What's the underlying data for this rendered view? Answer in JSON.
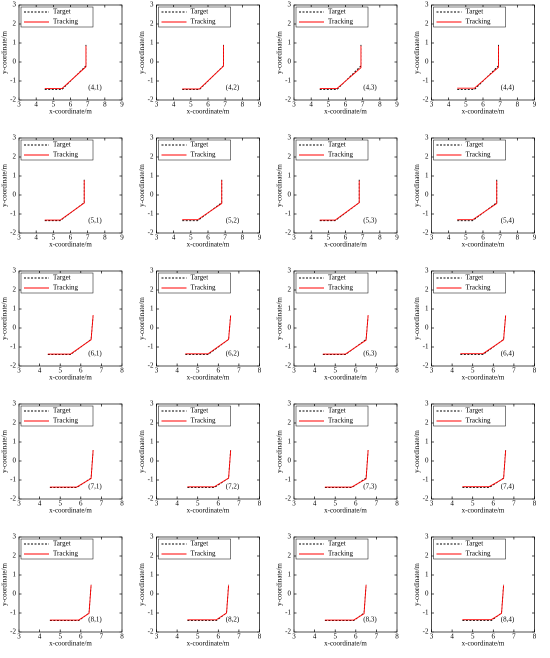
{
  "chart_data": [
    {
      "type": "line",
      "xlabel": "x-coordinate/m",
      "ylabel": "y-coordinate/m",
      "annotation": "(4,1)",
      "xlim": [
        3,
        9
      ],
      "ylim": [
        -2,
        3
      ],
      "xticks": [
        3,
        4,
        5,
        6,
        7,
        8,
        9
      ],
      "yticks": [
        -2,
        -1,
        0,
        1,
        2,
        3
      ],
      "x": [
        4.5,
        5.5,
        6.9,
        6.9
      ],
      "series": [
        {
          "name": "Target",
          "color": "#000000",
          "values": [
            -1.45,
            -1.45,
            -0.2,
            0.9
          ]
        },
        {
          "name": "Tracking",
          "color": "#ff0000",
          "values": [
            -1.4,
            -1.4,
            -0.25,
            0.85
          ]
        }
      ]
    },
    {
      "type": "line",
      "xlabel": "x-coordinate/m",
      "ylabel": "y-coordinate/m",
      "annotation": "(4,2)",
      "xlim": [
        3,
        9
      ],
      "ylim": [
        -2,
        3
      ],
      "xticks": [
        3,
        4,
        5,
        6,
        7,
        8,
        9
      ],
      "yticks": [
        -2,
        -1,
        0,
        1,
        2,
        3
      ],
      "x": [
        4.5,
        5.5,
        6.9,
        6.9
      ],
      "series": [
        {
          "name": "Target",
          "color": "#000000",
          "values": [
            -1.45,
            -1.45,
            -0.2,
            0.9
          ]
        },
        {
          "name": "Tracking",
          "color": "#ff0000",
          "values": [
            -1.42,
            -1.42,
            -0.22,
            0.88
          ]
        }
      ]
    },
    {
      "type": "line",
      "xlabel": "x-coordinate/m",
      "ylabel": "y-coordinate/m",
      "annotation": "(4,3)",
      "xlim": [
        3,
        9
      ],
      "ylim": [
        -2,
        3
      ],
      "xticks": [
        3,
        4,
        5,
        6,
        7,
        8,
        9
      ],
      "yticks": [
        -2,
        -1,
        0,
        1,
        2,
        3
      ],
      "x": [
        4.5,
        5.5,
        6.9,
        6.9
      ],
      "series": [
        {
          "name": "Target",
          "color": "#000000",
          "values": [
            -1.45,
            -1.45,
            -0.2,
            0.9
          ]
        },
        {
          "name": "Tracking",
          "color": "#ff0000",
          "values": [
            -1.4,
            -1.4,
            -0.3,
            0.85
          ]
        }
      ]
    },
    {
      "type": "line",
      "xlabel": "x-coordinate/m",
      "ylabel": "y-coordinate/m",
      "annotation": "(4,4)",
      "xlim": [
        3,
        9
      ],
      "ylim": [
        -2,
        3
      ],
      "xticks": [
        3,
        4,
        5,
        6,
        7,
        8,
        9
      ],
      "yticks": [
        -2,
        -1,
        0,
        1,
        2,
        3
      ],
      "x": [
        4.5,
        5.5,
        6.9,
        6.9
      ],
      "series": [
        {
          "name": "Target",
          "color": "#000000",
          "values": [
            -1.45,
            -1.45,
            -0.2,
            0.9
          ]
        },
        {
          "name": "Tracking",
          "color": "#ff0000",
          "values": [
            -1.38,
            -1.38,
            -0.28,
            0.85
          ]
        }
      ]
    },
    {
      "type": "line",
      "xlabel": "x-coordinate/m",
      "ylabel": "y-coordinate/m",
      "annotation": "(5,1)",
      "xlim": [
        3,
        9
      ],
      "ylim": [
        -2,
        3
      ],
      "xticks": [
        3,
        4,
        5,
        6,
        7,
        8,
        9
      ],
      "yticks": [
        -2,
        -1,
        0,
        1,
        2,
        3
      ],
      "x": [
        4.5,
        5.4,
        6.8,
        6.8
      ],
      "series": [
        {
          "name": "Target",
          "color": "#000000",
          "values": [
            -1.35,
            -1.35,
            -0.4,
            0.8
          ]
        },
        {
          "name": "Tracking",
          "color": "#ff0000",
          "values": [
            -1.32,
            -1.32,
            -0.42,
            0.78
          ]
        }
      ]
    },
    {
      "type": "line",
      "xlabel": "x-coordinate/m",
      "ylabel": "y-coordinate/m",
      "annotation": "(5,2)",
      "xlim": [
        3,
        9
      ],
      "ylim": [
        -2,
        3
      ],
      "xticks": [
        3,
        4,
        5,
        6,
        7,
        8,
        9
      ],
      "yticks": [
        -2,
        -1,
        0,
        1,
        2,
        3
      ],
      "x": [
        4.5,
        5.4,
        6.8,
        6.8
      ],
      "series": [
        {
          "name": "Target",
          "color": "#000000",
          "values": [
            -1.35,
            -1.35,
            -0.4,
            0.8
          ]
        },
        {
          "name": "Tracking",
          "color": "#ff0000",
          "values": [
            -1.3,
            -1.3,
            -0.45,
            0.78
          ]
        }
      ]
    },
    {
      "type": "line",
      "xlabel": "x-coordinate/m",
      "ylabel": "y-coordinate/m",
      "annotation": "(5,3)",
      "xlim": [
        3,
        9
      ],
      "ylim": [
        -2,
        3
      ],
      "xticks": [
        3,
        4,
        5,
        6,
        7,
        8,
        9
      ],
      "yticks": [
        -2,
        -1,
        0,
        1,
        2,
        3
      ],
      "x": [
        4.5,
        5.4,
        6.8,
        6.8
      ],
      "series": [
        {
          "name": "Target",
          "color": "#000000",
          "values": [
            -1.35,
            -1.35,
            -0.4,
            0.8
          ]
        },
        {
          "name": "Tracking",
          "color": "#ff0000",
          "values": [
            -1.32,
            -1.32,
            -0.4,
            0.75
          ]
        }
      ]
    },
    {
      "type": "line",
      "xlabel": "x-coordinate/m",
      "ylabel": "y-coordinate/m",
      "annotation": "(5,4)",
      "xlim": [
        3,
        9
      ],
      "ylim": [
        -2,
        3
      ],
      "xticks": [
        3,
        4,
        5,
        6,
        7,
        8,
        9
      ],
      "yticks": [
        -2,
        -1,
        0,
        1,
        2,
        3
      ],
      "x": [
        4.5,
        5.4,
        6.8,
        6.8
      ],
      "series": [
        {
          "name": "Target",
          "color": "#000000",
          "values": [
            -1.35,
            -1.35,
            -0.4,
            0.8
          ]
        },
        {
          "name": "Tracking",
          "color": "#ff0000",
          "values": [
            -1.3,
            -1.3,
            -0.45,
            0.75
          ]
        }
      ]
    },
    {
      "type": "line",
      "xlabel": "x-coordinate/m",
      "ylabel": "y-coordinate/m",
      "annotation": "(6,1)",
      "xlim": [
        3,
        8
      ],
      "ylim": [
        -2,
        3
      ],
      "xticks": [
        3,
        4,
        5,
        6,
        7,
        8
      ],
      "yticks": [
        -2,
        -1,
        0,
        1,
        2,
        3
      ],
      "x": [
        4.4,
        5.5,
        6.5,
        6.6
      ],
      "series": [
        {
          "name": "Target",
          "color": "#000000",
          "values": [
            -1.4,
            -1.4,
            -0.6,
            0.7
          ]
        },
        {
          "name": "Tracking",
          "color": "#ff0000",
          "values": [
            -1.37,
            -1.37,
            -0.62,
            0.68
          ]
        }
      ]
    },
    {
      "type": "line",
      "xlabel": "x-coordinate/m",
      "ylabel": "y-coordinate/m",
      "annotation": "(6,2)",
      "xlim": [
        3,
        8
      ],
      "ylim": [
        -2,
        3
      ],
      "xticks": [
        3,
        4,
        5,
        6,
        7,
        8
      ],
      "yticks": [
        -2,
        -1,
        0,
        1,
        2,
        3
      ],
      "x": [
        4.4,
        5.5,
        6.5,
        6.6
      ],
      "series": [
        {
          "name": "Target",
          "color": "#000000",
          "values": [
            -1.4,
            -1.4,
            -0.6,
            0.7
          ]
        },
        {
          "name": "Tracking",
          "color": "#ff0000",
          "values": [
            -1.36,
            -1.36,
            -0.6,
            0.66
          ]
        }
      ]
    },
    {
      "type": "line",
      "xlabel": "x-coordinate/m",
      "ylabel": "y-coordinate/m",
      "annotation": "(6,3)",
      "xlim": [
        3,
        8
      ],
      "ylim": [
        -2,
        3
      ],
      "xticks": [
        3,
        4,
        5,
        6,
        7,
        8
      ],
      "yticks": [
        -2,
        -1,
        0,
        1,
        2,
        3
      ],
      "x": [
        4.4,
        5.5,
        6.5,
        6.6
      ],
      "series": [
        {
          "name": "Target",
          "color": "#000000",
          "values": [
            -1.4,
            -1.4,
            -0.6,
            0.7
          ]
        },
        {
          "name": "Tracking",
          "color": "#ff0000",
          "values": [
            -1.37,
            -1.37,
            -0.64,
            0.68
          ]
        }
      ]
    },
    {
      "type": "line",
      "xlabel": "x-coordinate/m",
      "ylabel": "y-coordinate/m",
      "annotation": "(6,4)",
      "xlim": [
        3,
        8
      ],
      "ylim": [
        -2,
        3
      ],
      "xticks": [
        3,
        4,
        5,
        6,
        7,
        8
      ],
      "yticks": [
        -2,
        -1,
        0,
        1,
        2,
        3
      ],
      "x": [
        4.4,
        5.5,
        6.5,
        6.6
      ],
      "series": [
        {
          "name": "Target",
          "color": "#000000",
          "values": [
            -1.4,
            -1.4,
            -0.6,
            0.7
          ]
        },
        {
          "name": "Tracking",
          "color": "#ff0000",
          "values": [
            -1.35,
            -1.35,
            -0.62,
            0.66
          ]
        }
      ]
    },
    {
      "type": "line",
      "xlabel": "x-coordinate/m",
      "ylabel": "y-coordinate/m",
      "annotation": "(7,1)",
      "xlim": [
        3,
        8
      ],
      "ylim": [
        -2,
        3
      ],
      "xticks": [
        3,
        4,
        5,
        6,
        7,
        8
      ],
      "yticks": [
        -2,
        -1,
        0,
        1,
        2,
        3
      ],
      "x": [
        4.5,
        5.8,
        6.5,
        6.6
      ],
      "series": [
        {
          "name": "Target",
          "color": "#000000",
          "values": [
            -1.4,
            -1.4,
            -0.9,
            0.6
          ]
        },
        {
          "name": "Tracking",
          "color": "#ff0000",
          "values": [
            -1.37,
            -1.37,
            -0.92,
            0.58
          ]
        }
      ]
    },
    {
      "type": "line",
      "xlabel": "x-coordinate/m",
      "ylabel": "y-coordinate/m",
      "annotation": "(7,2)",
      "xlim": [
        3,
        8
      ],
      "ylim": [
        -2,
        3
      ],
      "xticks": [
        3,
        4,
        5,
        6,
        7,
        8
      ],
      "yticks": [
        -2,
        -1,
        0,
        1,
        2,
        3
      ],
      "x": [
        4.5,
        5.8,
        6.5,
        6.6
      ],
      "series": [
        {
          "name": "Target",
          "color": "#000000",
          "values": [
            -1.4,
            -1.4,
            -0.9,
            0.6
          ]
        },
        {
          "name": "Tracking",
          "color": "#ff0000",
          "values": [
            -1.36,
            -1.36,
            -0.9,
            0.56
          ]
        }
      ]
    },
    {
      "type": "line",
      "xlabel": "x-coordinate/m",
      "ylabel": "y-coordinate/m",
      "annotation": "(7,3)",
      "xlim": [
        3,
        8
      ],
      "ylim": [
        -2,
        3
      ],
      "xticks": [
        3,
        4,
        5,
        6,
        7,
        8
      ],
      "yticks": [
        -2,
        -1,
        0,
        1,
        2,
        3
      ],
      "x": [
        4.5,
        5.8,
        6.5,
        6.6
      ],
      "series": [
        {
          "name": "Target",
          "color": "#000000",
          "values": [
            -1.4,
            -1.4,
            -0.9,
            0.6
          ]
        },
        {
          "name": "Tracking",
          "color": "#ff0000",
          "values": [
            -1.37,
            -1.37,
            -0.94,
            0.58
          ]
        }
      ]
    },
    {
      "type": "line",
      "xlabel": "x-coordinate/m",
      "ylabel": "y-coordinate/m",
      "annotation": "(7,4)",
      "xlim": [
        3,
        8
      ],
      "ylim": [
        -2,
        3
      ],
      "xticks": [
        3,
        4,
        5,
        6,
        7,
        8
      ],
      "yticks": [
        -2,
        -1,
        0,
        1,
        2,
        3
      ],
      "x": [
        4.5,
        5.8,
        6.5,
        6.6
      ],
      "series": [
        {
          "name": "Target",
          "color": "#000000",
          "values": [
            -1.4,
            -1.4,
            -0.9,
            0.6
          ]
        },
        {
          "name": "Tracking",
          "color": "#ff0000",
          "values": [
            -1.35,
            -1.35,
            -0.92,
            0.56
          ]
        }
      ]
    },
    {
      "type": "line",
      "xlabel": "x-coordinate/m",
      "ylabel": "y-coordinate/m",
      "annotation": "(8,1)",
      "xlim": [
        3,
        8
      ],
      "ylim": [
        -2,
        3
      ],
      "xticks": [
        3,
        4,
        5,
        6,
        7,
        8
      ],
      "yticks": [
        -2,
        -1,
        0,
        1,
        2,
        3
      ],
      "x": [
        4.5,
        5.9,
        6.4,
        6.5
      ],
      "series": [
        {
          "name": "Target",
          "color": "#000000",
          "values": [
            -1.4,
            -1.4,
            -1.0,
            0.5
          ]
        },
        {
          "name": "Tracking",
          "color": "#ff0000",
          "values": [
            -1.37,
            -1.37,
            -1.02,
            0.48
          ]
        }
      ]
    },
    {
      "type": "line",
      "xlabel": "x-coordinate/m",
      "ylabel": "y-coordinate/m",
      "annotation": "(8,2)",
      "xlim": [
        3,
        8
      ],
      "ylim": [
        -2,
        3
      ],
      "xticks": [
        3,
        4,
        5,
        6,
        7,
        8
      ],
      "yticks": [
        -2,
        -1,
        0,
        1,
        2,
        3
      ],
      "x": [
        4.5,
        5.9,
        6.4,
        6.5
      ],
      "series": [
        {
          "name": "Target",
          "color": "#000000",
          "values": [
            -1.4,
            -1.4,
            -1.0,
            0.5
          ]
        },
        {
          "name": "Tracking",
          "color": "#ff0000",
          "values": [
            -1.36,
            -1.36,
            -1.0,
            0.46
          ]
        }
      ]
    },
    {
      "type": "line",
      "xlabel": "x-coordinate/m",
      "ylabel": "y-coordinate/m",
      "annotation": "(8,3)",
      "xlim": [
        3,
        8
      ],
      "ylim": [
        -2,
        3
      ],
      "xticks": [
        3,
        4,
        5,
        6,
        7,
        8
      ],
      "yticks": [
        -2,
        -1,
        0,
        1,
        2,
        3
      ],
      "x": [
        4.5,
        5.9,
        6.4,
        6.5
      ],
      "series": [
        {
          "name": "Target",
          "color": "#000000",
          "values": [
            -1.4,
            -1.4,
            -1.0,
            0.5
          ]
        },
        {
          "name": "Tracking",
          "color": "#ff0000",
          "values": [
            -1.37,
            -1.37,
            -1.04,
            0.48
          ]
        }
      ]
    },
    {
      "type": "line",
      "xlabel": "x-coordinate/m",
      "ylabel": "y-coordinate/m",
      "annotation": "(8,4)",
      "xlim": [
        3,
        8
      ],
      "ylim": [
        -2,
        3
      ],
      "xticks": [
        3,
        4,
        5,
        6,
        7,
        8
      ],
      "yticks": [
        -2,
        -1,
        0,
        1,
        2,
        3
      ],
      "x": [
        4.5,
        5.9,
        6.4,
        6.5
      ],
      "series": [
        {
          "name": "Target",
          "color": "#000000",
          "values": [
            -1.4,
            -1.4,
            -1.0,
            0.5
          ]
        },
        {
          "name": "Tracking",
          "color": "#ff0000",
          "values": [
            -1.35,
            -1.35,
            -1.02,
            0.46
          ]
        }
      ]
    }
  ]
}
